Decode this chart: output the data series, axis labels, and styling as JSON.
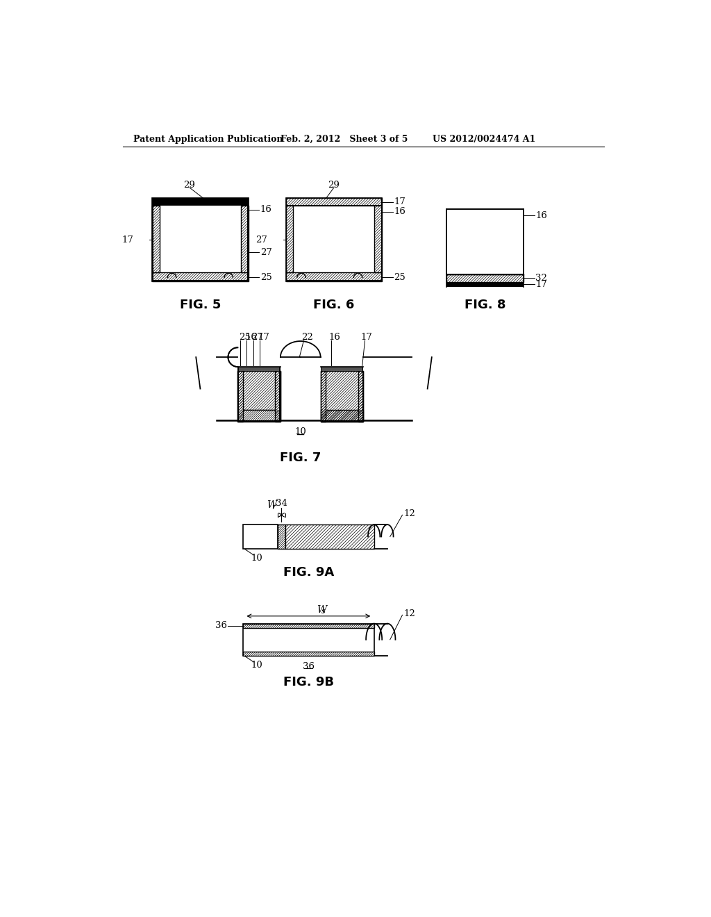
{
  "bg_color": "#ffffff",
  "header_left": "Patent Application Publication",
  "header_mid": "Feb. 2, 2012   Sheet 3 of 5",
  "header_right": "US 2012/0024474 A1",
  "fig_labels": {
    "fig5": "FIG. 5",
    "fig6": "FIG. 6",
    "fig8": "FIG. 8",
    "fig7": "FIG. 7",
    "fig9a": "FIG. 9A",
    "fig9b": "FIG. 9B"
  }
}
